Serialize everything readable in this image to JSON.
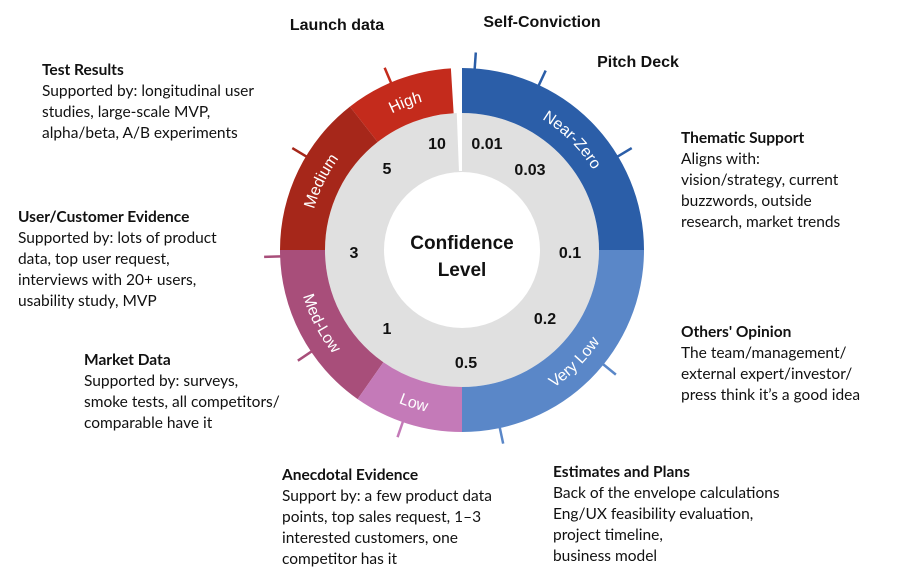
{
  "center_label": {
    "line1": "Confidence",
    "line2": "Level"
  },
  "segments": [
    {
      "id": "high",
      "label": "High",
      "color": "#c42b1c"
    },
    {
      "id": "medium",
      "label": "Medium",
      "color": "#a6271a"
    },
    {
      "id": "medlow",
      "label": "Med-Low",
      "color": "#a84e7a"
    },
    {
      "id": "low",
      "label": "Low",
      "color": "#c47ab8"
    },
    {
      "id": "verylow",
      "label": "Very Low",
      "color": "#5a87c8"
    },
    {
      "id": "nearzero",
      "label": "Near-Zero",
      "color": "#2b5ea8"
    }
  ],
  "values": [
    "0.01",
    "0.03",
    "0.1",
    "0.2",
    "0.5",
    "1",
    "3",
    "5",
    "10"
  ],
  "top_labels": {
    "launch": "Launch data",
    "conviction": "Self-Conviction",
    "pitch": "Pitch Deck"
  },
  "annotations": {
    "test_results": {
      "title": "Test Results",
      "body": [
        "Supported by: longitudinal user",
        "studies, large-scale MVP,",
        "alpha/beta, A/B experiments"
      ]
    },
    "user_evidence": {
      "title": "User/Customer Evidence",
      "body": [
        "Supported by: lots of product",
        "data, top user request,",
        "interviews with 20+ users,",
        "usability study, MVP"
      ]
    },
    "market_data": {
      "title": "Market Data",
      "body": [
        "Supported by: surveys,",
        "smoke tests, all competitors/",
        "comparable have it"
      ]
    },
    "anecdotal": {
      "title": "Anecdotal Evidence",
      "body": [
        "Support by: a few product data",
        "points, top sales request, 1–3",
        "interested customers, one",
        "competitor has it"
      ]
    },
    "estimates": {
      "title": "Estimates and Plans",
      "body": [
        "Back of the envelope calculations",
        "Eng/UX feasibility evaluation,",
        "project timeline,",
        "business model"
      ]
    },
    "others": {
      "title": "Others' Opinion",
      "body": [
        "The team/management/",
        "external expert/investor/",
        "press think it’s a good idea"
      ]
    },
    "thematic": {
      "title": "Thematic Support",
      "body": [
        "Aligns with:",
        "vision/strategy, current",
        "buzzwords, outside",
        "research, market trends"
      ]
    }
  }
}
